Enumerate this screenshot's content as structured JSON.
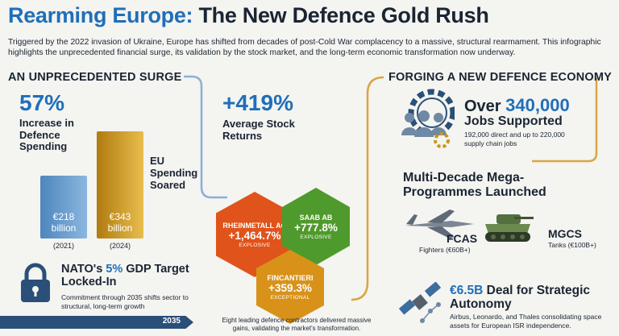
{
  "title": {
    "part1": "Rearming Europe:",
    "part2": " The New Defence Gold Rush"
  },
  "intro": "Triggered by the 2022 invasion of Ukraine, Europe has shifted from decades of post-Cold War complacency to a massive, structural rearmament. This infographic highlights the unprecedented financial surge, its validation by the stock market, and the long-term economic transformation now underway.",
  "left": {
    "heading": "AN UNPRECEDENTED SURGE",
    "pct": "57%",
    "pct_label": "Increase in Defence Spending",
    "bars": [
      {
        "value": "€218 billion",
        "year": "(2021)",
        "color": "#6a9fd0"
      },
      {
        "value": "€343 billion",
        "year": "(2024)",
        "color": "#c9961e"
      }
    ],
    "eu_label": "EU Spending Soared",
    "nato_title_a": "NATO's ",
    "nato_title_b": "5%",
    "nato_title_c": " GDP Target Locked-In",
    "nato_sub": "Commitment through 2035 shifts sector to structural, long-term growth",
    "timeline_year": "2035"
  },
  "middle": {
    "returns": "+419%",
    "returns_label": "Average Stock Returns",
    "hexes": [
      {
        "name": "RHEINMETALL AG",
        "value": "+1,464.7%",
        "tag": "EXPLOSIVE",
        "color": "#e0531a"
      },
      {
        "name": "SAAB AB",
        "value": "+777.8%",
        "tag": "EXPLOSIVE",
        "color": "#4f9a2c"
      },
      {
        "name": "FINCANTIERI",
        "value": "+359.3%",
        "tag": "EXCEPTIONAL",
        "color": "#d8921a"
      }
    ],
    "caption": "Eight leading defence contractors delivered massive gains, validating the market's transformation."
  },
  "right": {
    "heading": "FORGING A NEW DEFENCE ECONOMY",
    "jobs_a": "Over ",
    "jobs_b": "340,000",
    "jobs_c": "Jobs Supported",
    "jobs_sub": "192,000 direct and up to 220,000 supply chain jobs",
    "mega_title": "Multi-Decade Mega-Programmes Launched",
    "fcas": "FCAS",
    "fcas_sub": "Fighters (€60B+)",
    "mgcs": "MGCS",
    "mgcs_sub": "Tanks (€100B+)",
    "space_a": "€6.5B",
    "space_b": " Deal for Strategic Autonomy",
    "space_sub": "Airbus, Leonardo, and Thales consolidating space assets for European ISR independence."
  },
  "colors": {
    "accent": "#1f6fb8",
    "gold": "#c9961e",
    "dark": "#1a2533",
    "line": "#8ab0d6",
    "line_gold": "#d9a642"
  }
}
